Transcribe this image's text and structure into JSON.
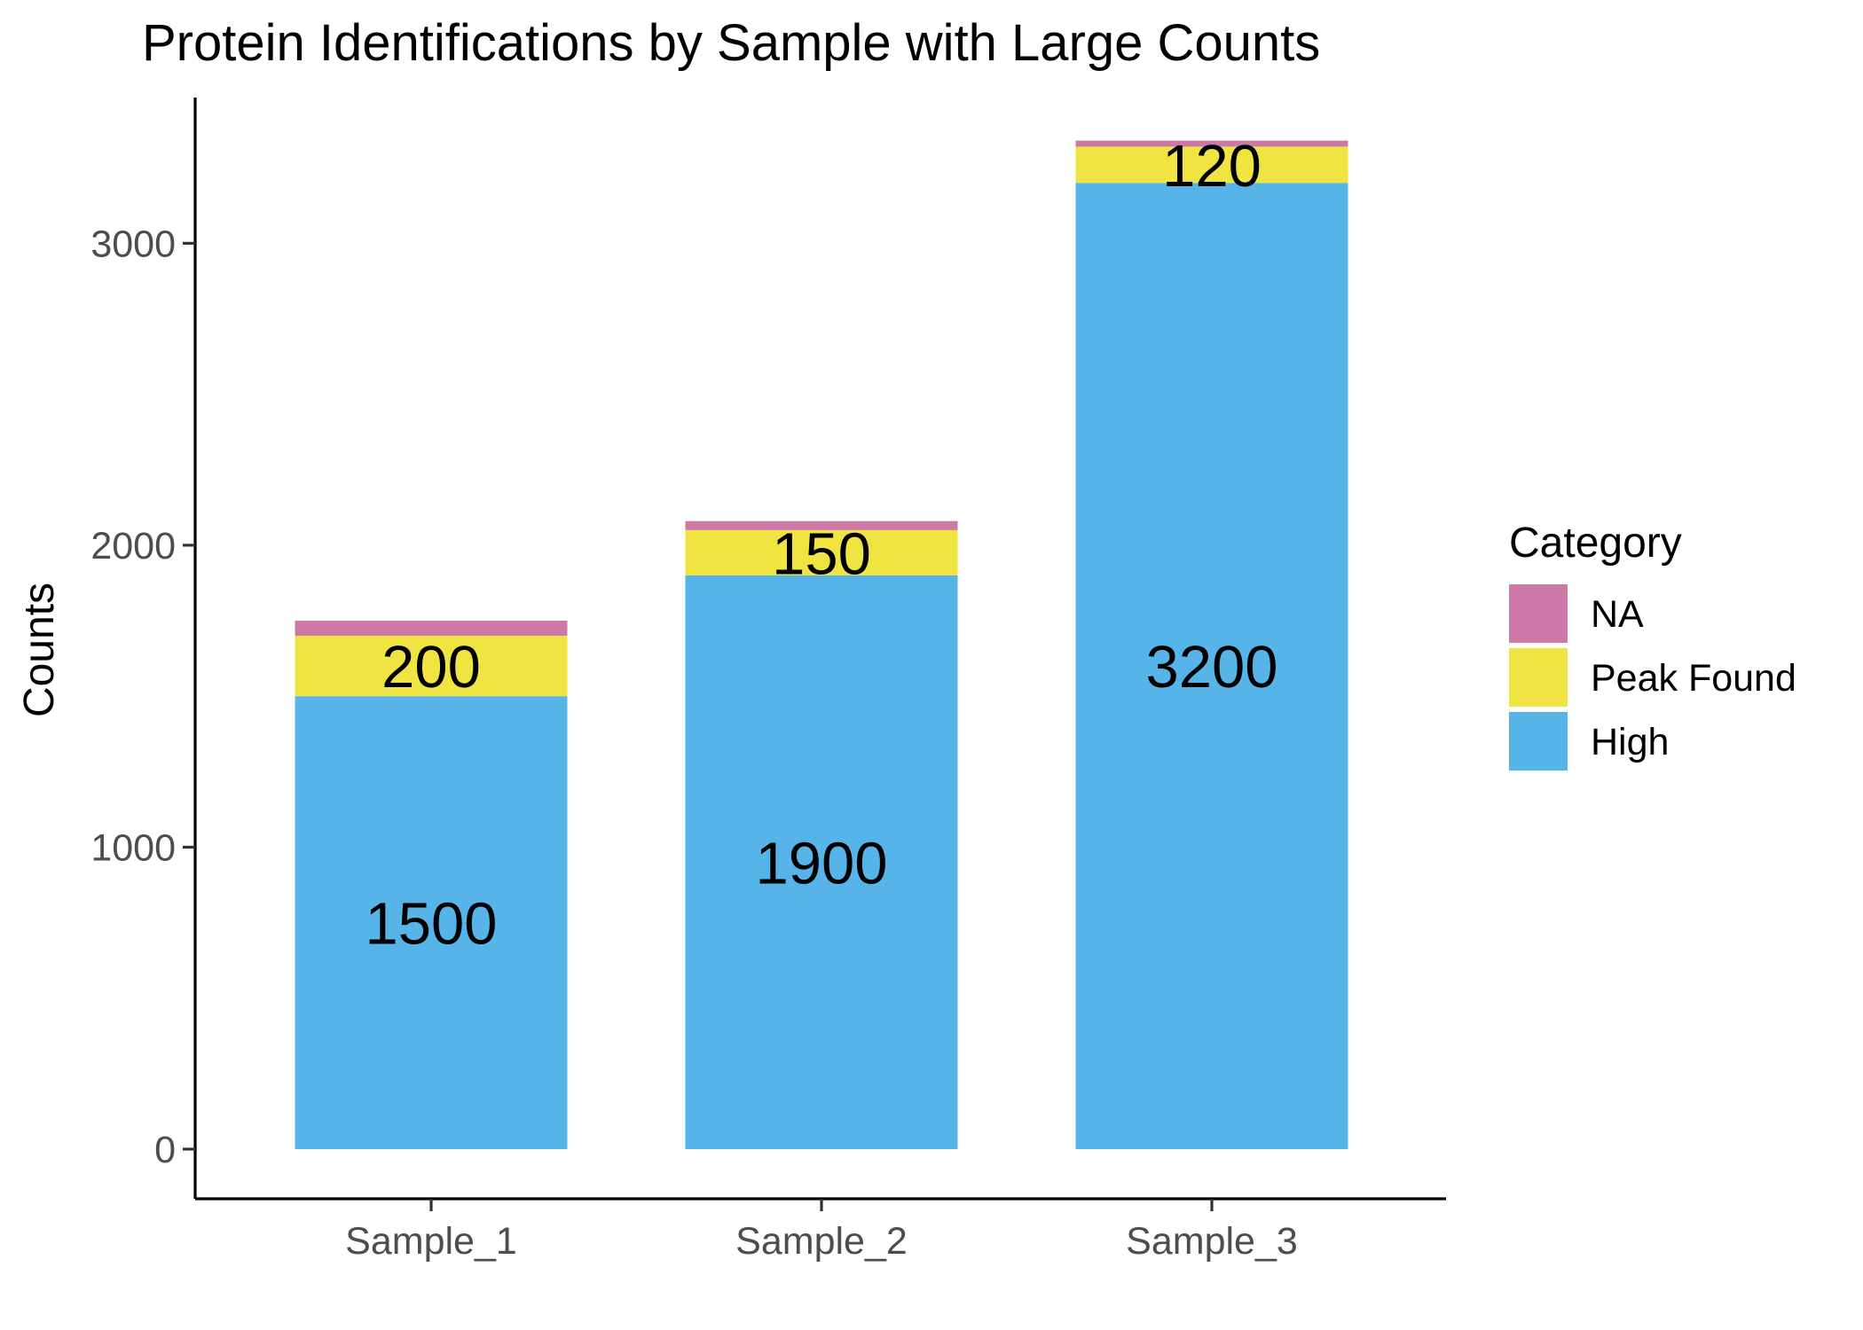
{
  "chart_data": {
    "type": "bar",
    "stacked": true,
    "title": "Protein Identifications by Sample with Large Counts",
    "xlabel": "",
    "ylabel": "Counts",
    "categories": [
      "Sample_1",
      "Sample_2",
      "Sample_3"
    ],
    "ylim": [
      0,
      3330
    ],
    "yticks": [
      0,
      1000,
      2000,
      3000
    ],
    "grid": false,
    "legend": {
      "title": "Category",
      "placement": "right",
      "order": [
        "NA",
        "Peak Found",
        "High"
      ]
    },
    "series": [
      {
        "name": "High",
        "color": "#56B4E9",
        "values": [
          1500,
          1900,
          3200
        ],
        "labels": [
          "1500",
          "1900",
          "3200"
        ]
      },
      {
        "name": "Peak Found",
        "color": "#F0E442",
        "values": [
          200,
          150,
          120
        ],
        "labels": [
          "200",
          "150",
          "120"
        ]
      },
      {
        "name": "NA",
        "color": "#CC79A7",
        "values": [
          50,
          30,
          20
        ],
        "labels": []
      }
    ]
  }
}
